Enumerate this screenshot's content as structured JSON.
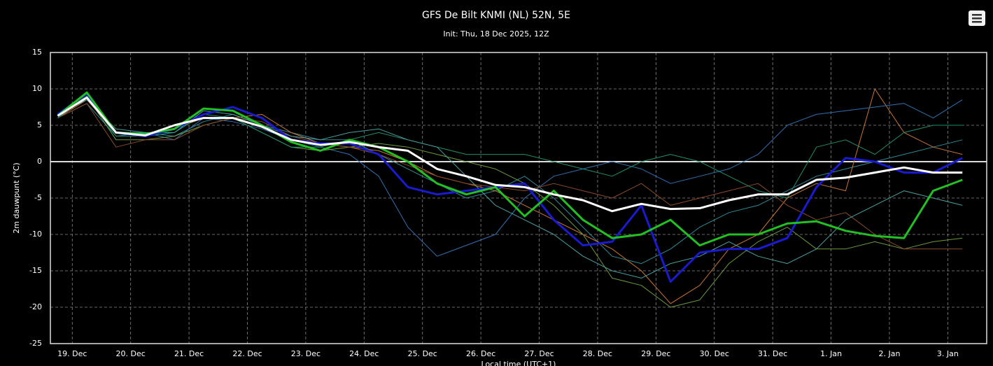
{
  "chart_data": {
    "type": "line",
    "title": "GFS De Bilt KNMI (NL) 52N, 5E",
    "subtitle": "Init: Thu, 18 Dec 2025, 12Z",
    "y_label": "2m dauwpunt (°C)",
    "x_label": "Local time (UTC+1)",
    "xlim": [
      3,
      388
    ],
    "ylim": [
      -25,
      15
    ],
    "yticks": [
      -25,
      -20,
      -15,
      -10,
      -5,
      0,
      5,
      10,
      15
    ],
    "xticks": [
      {
        "value": 12,
        "label": "19. Dec"
      },
      {
        "value": 36,
        "label": "20. Dec"
      },
      {
        "value": 60,
        "label": "21. Dec"
      },
      {
        "value": 84,
        "label": "22. Dec"
      },
      {
        "value": 108,
        "label": "23. Dec"
      },
      {
        "value": 132,
        "label": "24. Dec"
      },
      {
        "value": 156,
        "label": "25. Dec"
      },
      {
        "value": 180,
        "label": "26. Dec"
      },
      {
        "value": 204,
        "label": "27. Dec"
      },
      {
        "value": 228,
        "label": "28. Dec"
      },
      {
        "value": 252,
        "label": "29. Dec"
      },
      {
        "value": 276,
        "label": "30. Dec"
      },
      {
        "value": 300,
        "label": "31. Dec"
      },
      {
        "value": 324,
        "label": "1. Jan"
      },
      {
        "value": 348,
        "label": "2. Jan"
      },
      {
        "value": 372,
        "label": "3. Jan"
      }
    ],
    "grid": true,
    "x": [
      6,
      18,
      30,
      42,
      54,
      66,
      78,
      90,
      102,
      114,
      126,
      138,
      150,
      162,
      174,
      186,
      198,
      210,
      222,
      234,
      246,
      258,
      270,
      282,
      294,
      306,
      318,
      330,
      342,
      354,
      366,
      378
    ],
    "series": [
      {
        "color": "#2e8b9a",
        "width": 1,
        "values": [
          6,
          8,
          3.5,
          4,
          3.5,
          5.5,
          6.5,
          5,
          4,
          3,
          3,
          1,
          -1,
          -3,
          -5,
          -4,
          -2,
          -5,
          -9,
          -13,
          -14,
          -12,
          -9,
          -7,
          -6,
          -4,
          -2,
          -1,
          0,
          1,
          2,
          3
        ]
      },
      {
        "color": "#c87533",
        "width": 1,
        "values": [
          6,
          8.5,
          4,
          3.5,
          4.5,
          6,
          6,
          6.5,
          4,
          2.5,
          2,
          1.5,
          0,
          -2,
          -3,
          -4,
          -6,
          -8,
          -10,
          -12,
          -15,
          -19.5,
          -17,
          -12,
          -10,
          -5,
          -3,
          -4,
          10,
          4,
          2,
          1
        ]
      },
      {
        "color": "#3070b0",
        "width": 1,
        "values": [
          6,
          9,
          4,
          4,
          3,
          6,
          5.5,
          4.5,
          3,
          2,
          1,
          -2,
          -9,
          -13,
          -11.5,
          -10,
          -5,
          -2,
          -1,
          0,
          -1,
          -3,
          -2,
          -1,
          1,
          5,
          6.5,
          7,
          7.5,
          8,
          6,
          8.5
        ]
      },
      {
        "color": "#6a9a3a",
        "width": 1,
        "values": [
          6.5,
          9,
          3,
          3,
          3.5,
          5,
          6,
          4,
          2,
          1.5,
          2,
          2.5,
          2,
          1,
          0,
          -1,
          -3,
          -6,
          -10,
          -16,
          -17,
          -20,
          -19,
          -14,
          -11,
          -9,
          -12,
          -12,
          -11,
          -12,
          -11,
          -10.5
        ]
      },
      {
        "color": "#8b4a2a",
        "width": 1,
        "values": [
          6,
          8,
          2,
          3,
          3,
          5,
          6,
          5.5,
          3.5,
          2.5,
          2,
          1,
          -0.5,
          -2,
          -3,
          -3.5,
          -4,
          -3,
          -4,
          -5,
          -3,
          -6,
          -5,
          -4,
          -3,
          -6,
          -8,
          -7,
          -10,
          -12,
          -12,
          -12
        ]
      },
      {
        "color": "#1f8f6f",
        "width": 1,
        "values": [
          6,
          9,
          3.5,
          3.5,
          4,
          6.5,
          6,
          4,
          2,
          2,
          3,
          4,
          3,
          2,
          1,
          1,
          1,
          0,
          -1,
          -2,
          0,
          1,
          0,
          -2,
          -4,
          -5,
          2,
          3,
          1,
          4,
          5,
          5
        ]
      },
      {
        "color": "#4aa0a0",
        "width": 1,
        "values": [
          6.5,
          8.5,
          4.5,
          4,
          4,
          7,
          6.5,
          5,
          3.5,
          3,
          4,
          4.5,
          3,
          2,
          -2,
          -6,
          -8,
          -10,
          -13,
          -15,
          -16,
          -14,
          -13,
          -11,
          -13,
          -14,
          -12,
          -8,
          -6,
          -4,
          -5,
          -6
        ]
      },
      {
        "color": "#1a1ad0",
        "width": 3,
        "values": [
          6.5,
          9.3,
          4,
          3.5,
          4.5,
          6.5,
          7.5,
          6,
          3,
          2.5,
          2.5,
          1,
          -3.5,
          -4.5,
          -4,
          -3.5,
          -3,
          -8,
          -11.5,
          -11,
          -6,
          -16.5,
          -12.5,
          -12,
          -12,
          -10.5,
          -3.5,
          0.5,
          0,
          -1.5,
          -1.5,
          0.5
        ]
      },
      {
        "color": "#22c022",
        "width": 3,
        "values": [
          6.3,
          9.5,
          4,
          3.8,
          4.5,
          7.3,
          7,
          5,
          2.7,
          1.5,
          3,
          2,
          0,
          -3,
          -4.5,
          -3.5,
          -7.5,
          -4,
          -8,
          -10.5,
          -10,
          -8,
          -11.5,
          -10,
          -10,
          -8.5,
          -8.2,
          -9.5,
          -10.2,
          -10.5,
          -4,
          -2.5
        ]
      },
      {
        "color": "#ffffff",
        "width": 3,
        "values": [
          6.3,
          8.8,
          4,
          3.6,
          5,
          6,
          6,
          4.8,
          3,
          2.3,
          2.7,
          2,
          1.5,
          -1,
          -2,
          -3.2,
          -3.5,
          -4.5,
          -5.3,
          -6.8,
          -5.8,
          -6.5,
          -6.4,
          -5.3,
          -4.5,
          -4.5,
          -2.5,
          -2.2,
          -1.5,
          -0.8,
          -1.5,
          -1.5
        ]
      }
    ]
  }
}
